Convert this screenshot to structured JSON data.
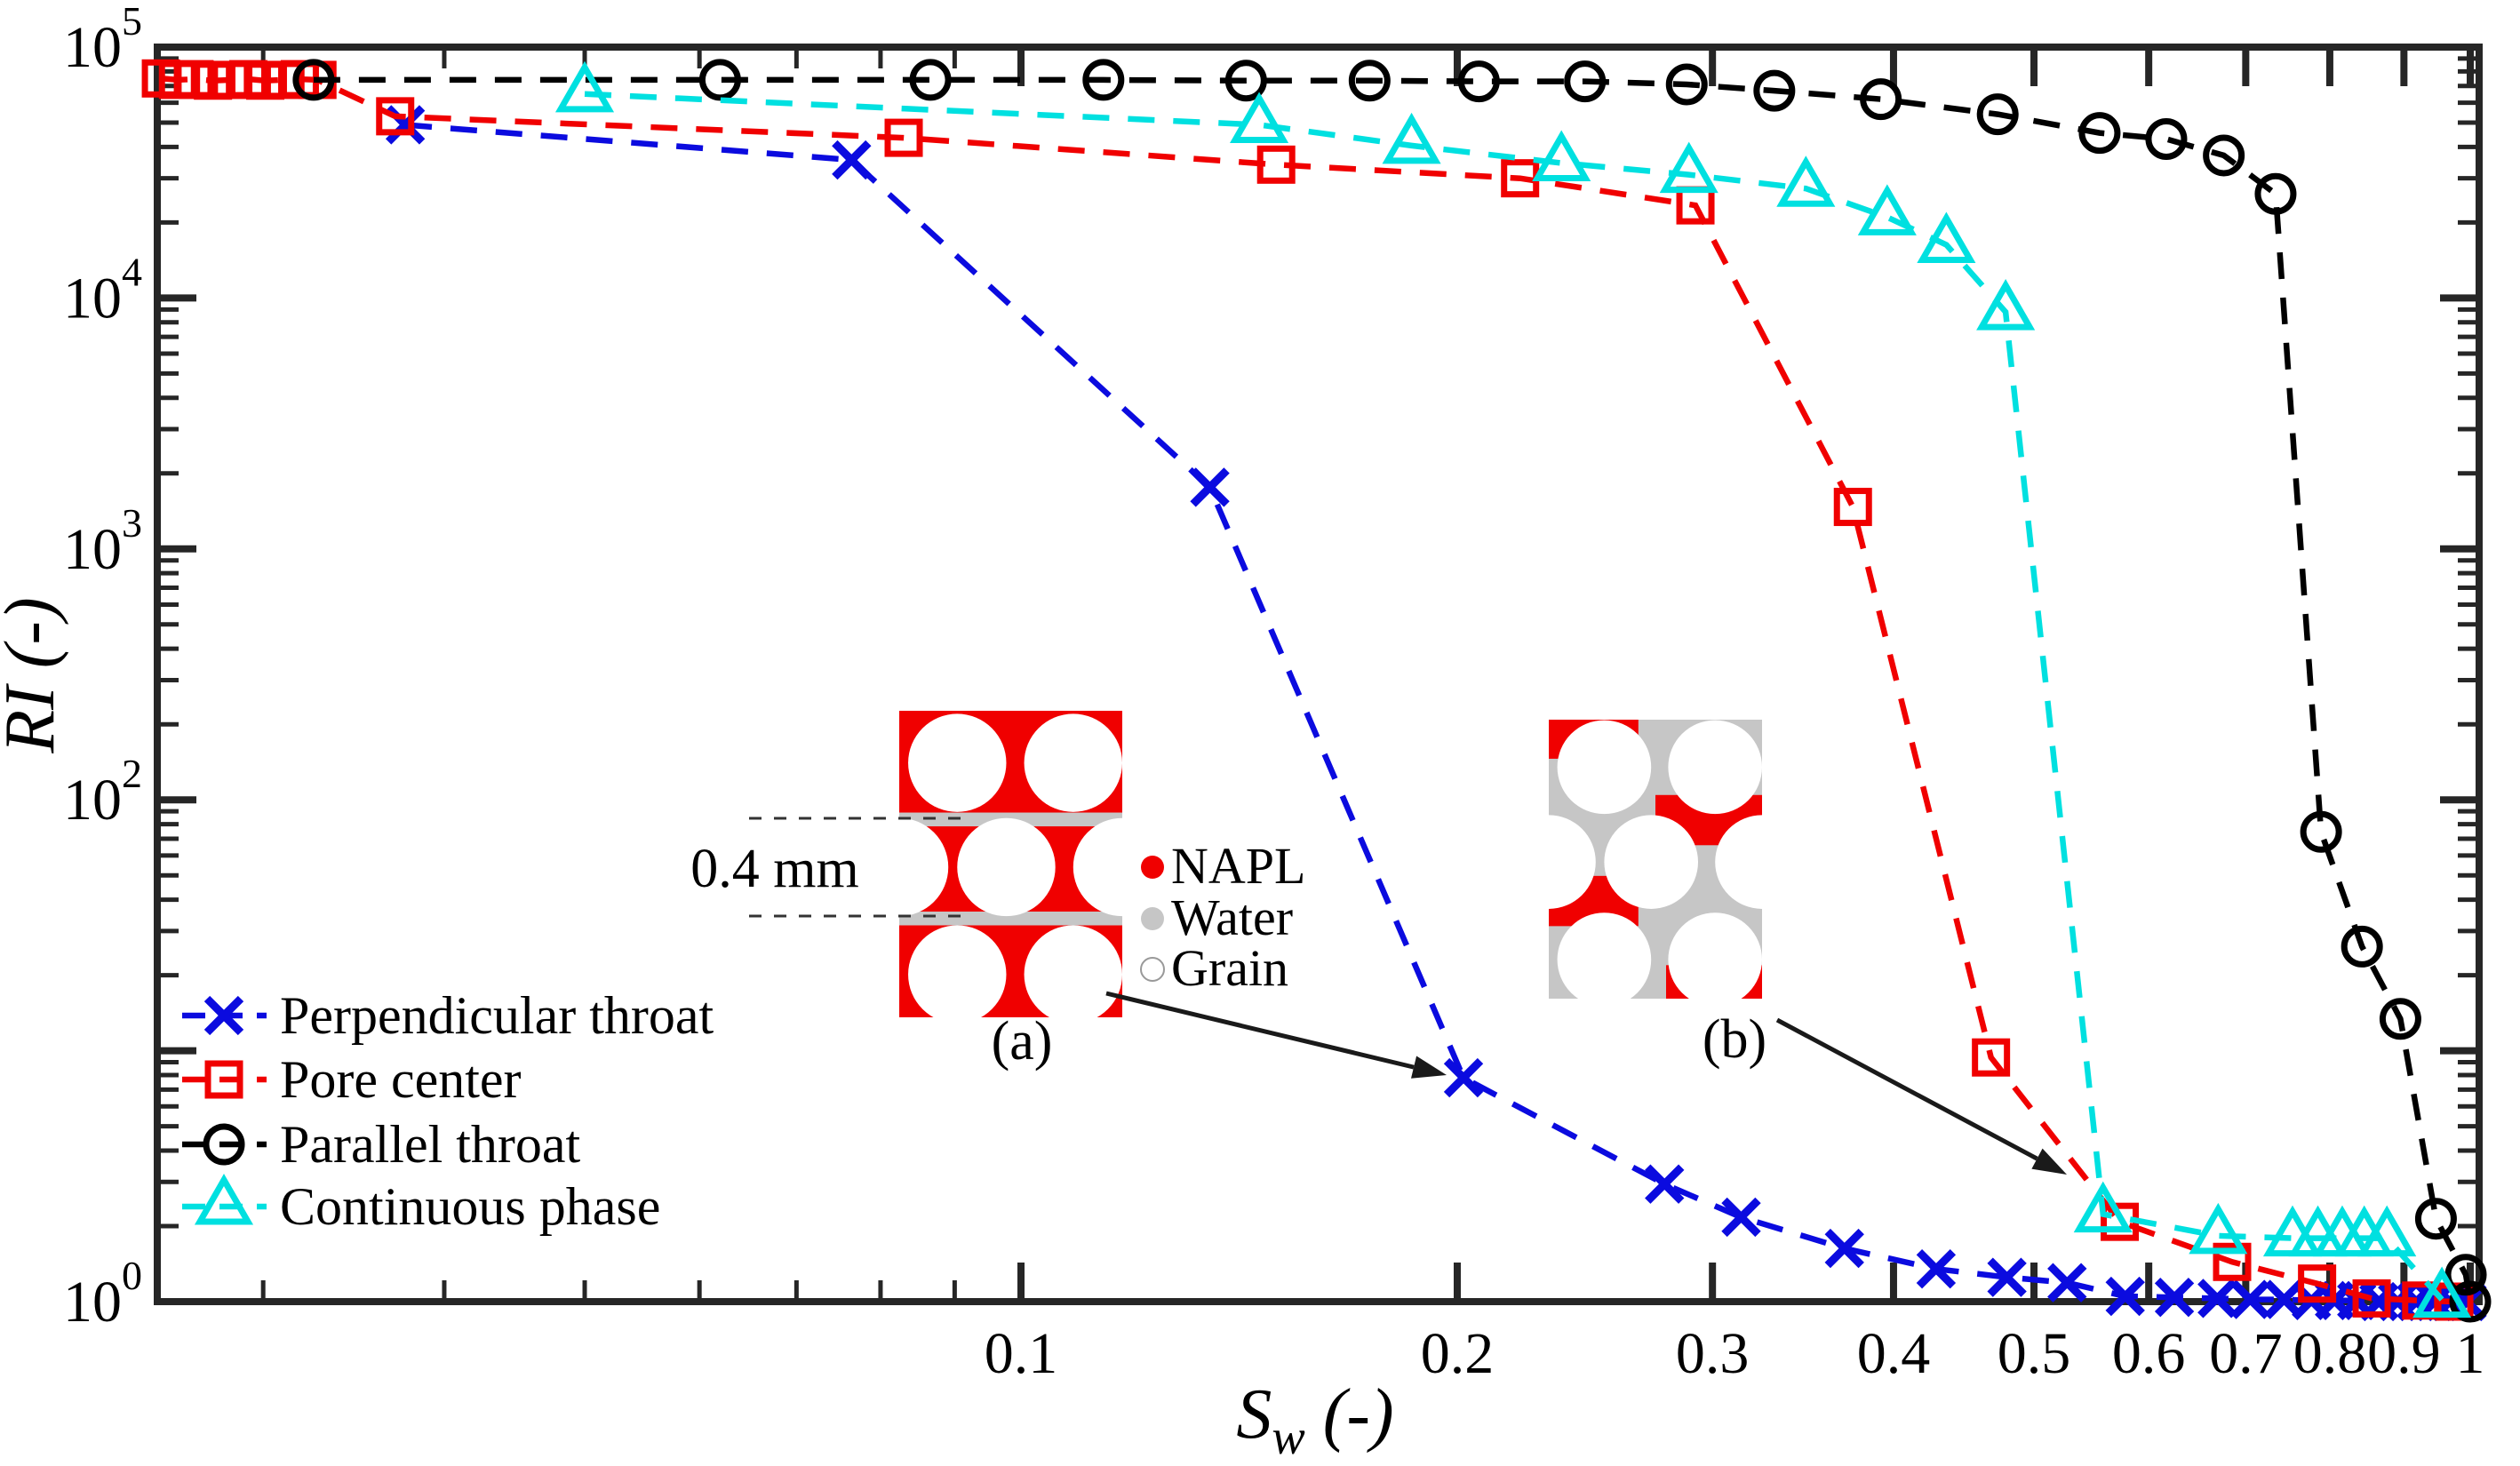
{
  "chart_data": {
    "type": "line",
    "title": "",
    "xlabel": {
      "main": "S",
      "sub": "w",
      "unit": " (-)"
    },
    "ylabel": {
      "main": "RI",
      "unit": " (-)"
    },
    "xscale": "log",
    "yscale": "log",
    "xlim": [
      0.0254,
      1.015
    ],
    "ylim": [
      1,
      100000
    ],
    "x_major_ticks": [
      0.1,
      0.2,
      0.3,
      0.4,
      0.5,
      0.6,
      0.7,
      0.8,
      0.9,
      1
    ],
    "x_major_labels": [
      "0.1",
      "0.2",
      "0.3",
      "0.4",
      "0.5",
      "0.6",
      "0.7",
      "0.8",
      "0.9",
      "1"
    ],
    "x_minor_ticks": [
      0.03,
      0.04,
      0.05,
      0.06,
      0.07,
      0.08,
      0.09
    ],
    "y_tick_decades": [
      0,
      1,
      2,
      3,
      4,
      5
    ],
    "y_labeled_decades": [
      5,
      4,
      3,
      2,
      0
    ],
    "y_label_base": "10",
    "grid": false,
    "legend_position": "lower-left",
    "series": [
      {
        "name": "Perpendicular throat",
        "color": "#0b0bdf",
        "marker": "x",
        "x": [
          0.0376,
          0.0764,
          0.135,
          0.202,
          0.278,
          0.314,
          0.37,
          0.428,
          0.479,
          0.527,
          0.578,
          0.625,
          0.669,
          0.705,
          0.744,
          0.777,
          0.806,
          0.835,
          0.865,
          0.891,
          0.918,
          0.945,
          0.968,
          0.995
        ],
        "y": [
          49000,
          35500,
          1760,
          7.8,
          2.94,
          2.17,
          1.63,
          1.35,
          1.25,
          1.19,
          1.05,
          1.04,
          1.03,
          1.02,
          1.02,
          1.01,
          1.01,
          1.01,
          1.0,
          1.0,
          1.0,
          1.0,
          1.0,
          1.0
        ]
      },
      {
        "name": "Pore center",
        "color": "#f00000",
        "marker": "square",
        "x": [
          0.0255,
          0.0262,
          0.0269,
          0.0277,
          0.0285,
          0.0293,
          0.0301,
          0.031,
          0.0318,
          0.0327,
          0.037,
          0.083,
          0.15,
          0.221,
          0.292,
          0.375,
          0.467,
          0.573,
          0.685,
          0.784,
          0.855,
          0.925,
          0.975
        ],
        "y": [
          75000,
          74000,
          74500,
          73500,
          74000,
          74500,
          73500,
          74000,
          74500,
          74000,
          53000,
          43500,
          34000,
          30000,
          23400,
          1470,
          9.4,
          2.08,
          1.44,
          1.18,
          1.03,
          1.01,
          1.0
        ]
      },
      {
        "name": "Parallel throat",
        "color": "#000000",
        "marker": "circle",
        "x": [
          0.0325,
          0.062,
          0.0866,
          0.114,
          0.143,
          0.174,
          0.207,
          0.245,
          0.288,
          0.331,
          0.392,
          0.472,
          0.555,
          0.617,
          0.676,
          0.734,
          0.789,
          0.842,
          0.895,
          0.947,
          0.993,
          1.0
        ],
        "y": [
          74000,
          74000,
          74000,
          74000,
          73500,
          73500,
          73000,
          73000,
          71000,
          67000,
          62000,
          54000,
          45500,
          43000,
          37000,
          26000,
          74.5,
          26,
          13.4,
          2.14,
          1.28,
          1.0
        ]
      },
      {
        "name": "Continuous phase",
        "color": "#00e0e0",
        "marker": "triangle",
        "x": [
          0.05,
          0.146,
          0.186,
          0.236,
          0.289,
          0.348,
          0.396,
          0.435,
          0.478,
          0.558,
          0.67,
          0.754,
          0.785,
          0.816,
          0.845,
          0.876,
          0.956
        ],
        "y": [
          65000,
          49000,
          40500,
          34500,
          31000,
          27300,
          21000,
          16300,
          8800,
          2.23,
          1.83,
          1.79,
          1.79,
          1.79,
          1.79,
          1.79,
          1.02
        ]
      }
    ]
  },
  "annotations": {
    "scale_label": "0.4 mm",
    "inset_a_label": "(a)",
    "inset_b_label": "(b)",
    "key": {
      "napl": "NAPL",
      "water": "Water",
      "grain": "Grain"
    },
    "colors": {
      "napl": "#f00000",
      "water": "#c6c6c6",
      "grain": "#ffffff",
      "frame": "#262626"
    }
  }
}
